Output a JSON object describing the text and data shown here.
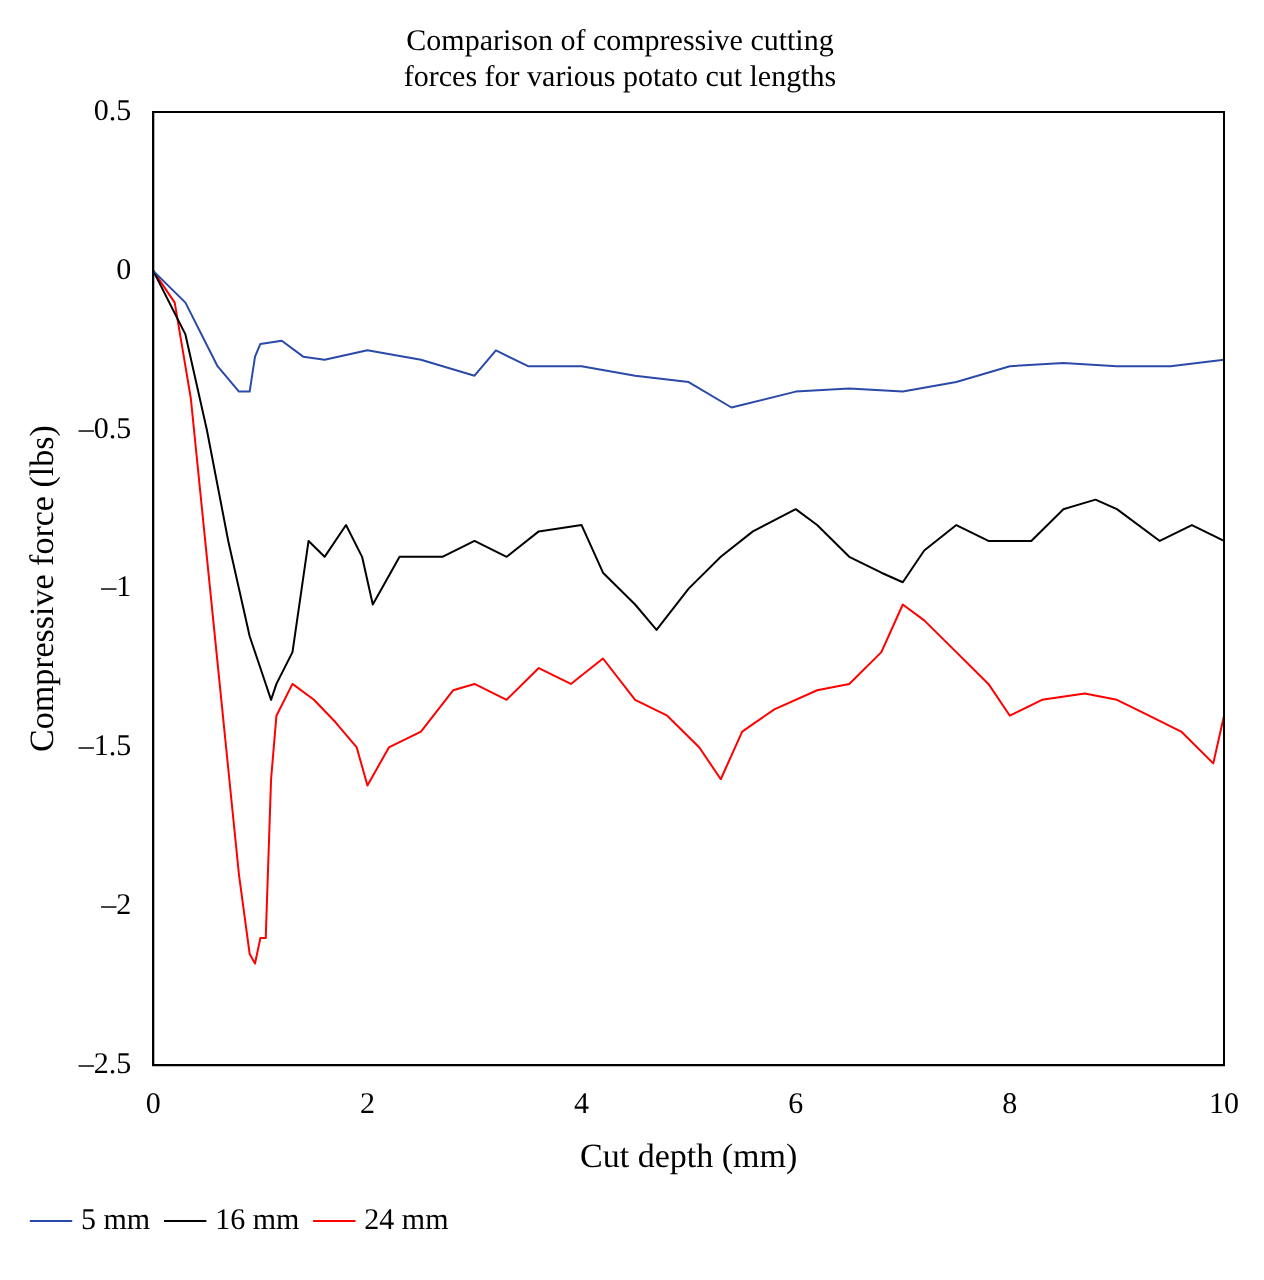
{
  "chart_data": {
    "type": "line",
    "title": "Comparison of compressive cutting\nforces for various potato cut lengths",
    "xlabel": "Cut depth (mm)",
    "ylabel": "Compressive force (lbs)",
    "xlim": [
      0,
      10
    ],
    "xticks": [
      0,
      2,
      4,
      6,
      8,
      10
    ],
    "ylim": [
      -2.5,
      0.5
    ],
    "yticks": [
      {
        "value": -2.5,
        "label": "–2.5"
      },
      {
        "value": -2,
        "label": "–2"
      },
      {
        "value": -1.5,
        "label": "–1.5"
      },
      {
        "value": -1,
        "label": "–1"
      },
      {
        "value": -0.5,
        "label": "–0.5"
      },
      0,
      0.5
    ],
    "grid": false,
    "legend": "bottom",
    "marker": "none",
    "line_style": "solid",
    "series": [
      {
        "name": "5 mm",
        "color": "#2b4aa8",
        "x": [
          0,
          0.3,
          0.6,
          0.8,
          0.9,
          0.95,
          1,
          1.2,
          1.4,
          1.6,
          2,
          2.5,
          3,
          3.2,
          3.5,
          4,
          4.5,
          5,
          5.4,
          6,
          6.5,
          7,
          7.5,
          8,
          8.5,
          9,
          9.5,
          10
        ],
        "values": [
          0,
          -0.1,
          -0.3,
          -0.38,
          -0.38,
          -0.27,
          -0.23,
          -0.22,
          -0.27,
          -0.28,
          -0.25,
          -0.28,
          -0.33,
          -0.25,
          -0.3,
          -0.3,
          -0.33,
          -0.35,
          -0.43,
          -0.38,
          -0.37,
          -0.38,
          -0.35,
          -0.3,
          -0.29,
          -0.3,
          -0.3,
          -0.28
        ]
      },
      {
        "name": "16 mm",
        "color": "#000000",
        "x": [
          0,
          0.3,
          0.5,
          0.7,
          0.9,
          1,
          1.1,
          1.15,
          1.3,
          1.45,
          1.6,
          1.8,
          1.95,
          2.05,
          2.3,
          2.7,
          3,
          3.3,
          3.6,
          4,
          4.2,
          4.5,
          4.7,
          5,
          5.3,
          5.6,
          6,
          6.2,
          6.5,
          6.8,
          7,
          7.2,
          7.5,
          7.8,
          8.2,
          8.5,
          8.8,
          9,
          9.4,
          9.7,
          10
        ],
        "values": [
          0,
          -0.2,
          -0.5,
          -0.85,
          -1.15,
          -1.25,
          -1.35,
          -1.3,
          -1.2,
          -0.85,
          -0.9,
          -0.8,
          -0.9,
          -1.05,
          -0.9,
          -0.9,
          -0.85,
          -0.9,
          -0.82,
          -0.8,
          -0.95,
          -1.05,
          -1.13,
          -1,
          -0.9,
          -0.82,
          -0.75,
          -0.8,
          -0.9,
          -0.95,
          -0.98,
          -0.88,
          -0.8,
          -0.85,
          -0.85,
          -0.75,
          -0.72,
          -0.75,
          -0.85,
          -0.8,
          -0.85
        ]
      },
      {
        "name": "24 mm",
        "color": "#ff0000",
        "x": [
          0,
          0.2,
          0.35,
          0.5,
          0.65,
          0.8,
          0.9,
          0.95,
          1,
          1.05,
          1.1,
          1.15,
          1.3,
          1.5,
          1.7,
          1.9,
          2,
          2.2,
          2.5,
          2.8,
          3,
          3.3,
          3.6,
          3.9,
          4.2,
          4.5,
          4.8,
          5.1,
          5.3,
          5.5,
          5.8,
          6.2,
          6.5,
          6.8,
          7,
          7.2,
          7.5,
          7.8,
          8,
          8.3,
          8.7,
          9,
          9.3,
          9.6,
          9.9,
          10
        ],
        "values": [
          0,
          -0.1,
          -0.4,
          -0.9,
          -1.4,
          -1.9,
          -2.15,
          -2.18,
          -2.1,
          -2.1,
          -1.6,
          -1.4,
          -1.3,
          -1.35,
          -1.42,
          -1.5,
          -1.62,
          -1.5,
          -1.45,
          -1.32,
          -1.3,
          -1.35,
          -1.25,
          -1.3,
          -1.22,
          -1.35,
          -1.4,
          -1.5,
          -1.6,
          -1.45,
          -1.38,
          -1.32,
          -1.3,
          -1.2,
          -1.05,
          -1.1,
          -1.2,
          -1.3,
          -1.4,
          -1.35,
          -1.33,
          -1.35,
          -1.4,
          -1.45,
          -1.55,
          -1.4
        ]
      }
    ]
  }
}
